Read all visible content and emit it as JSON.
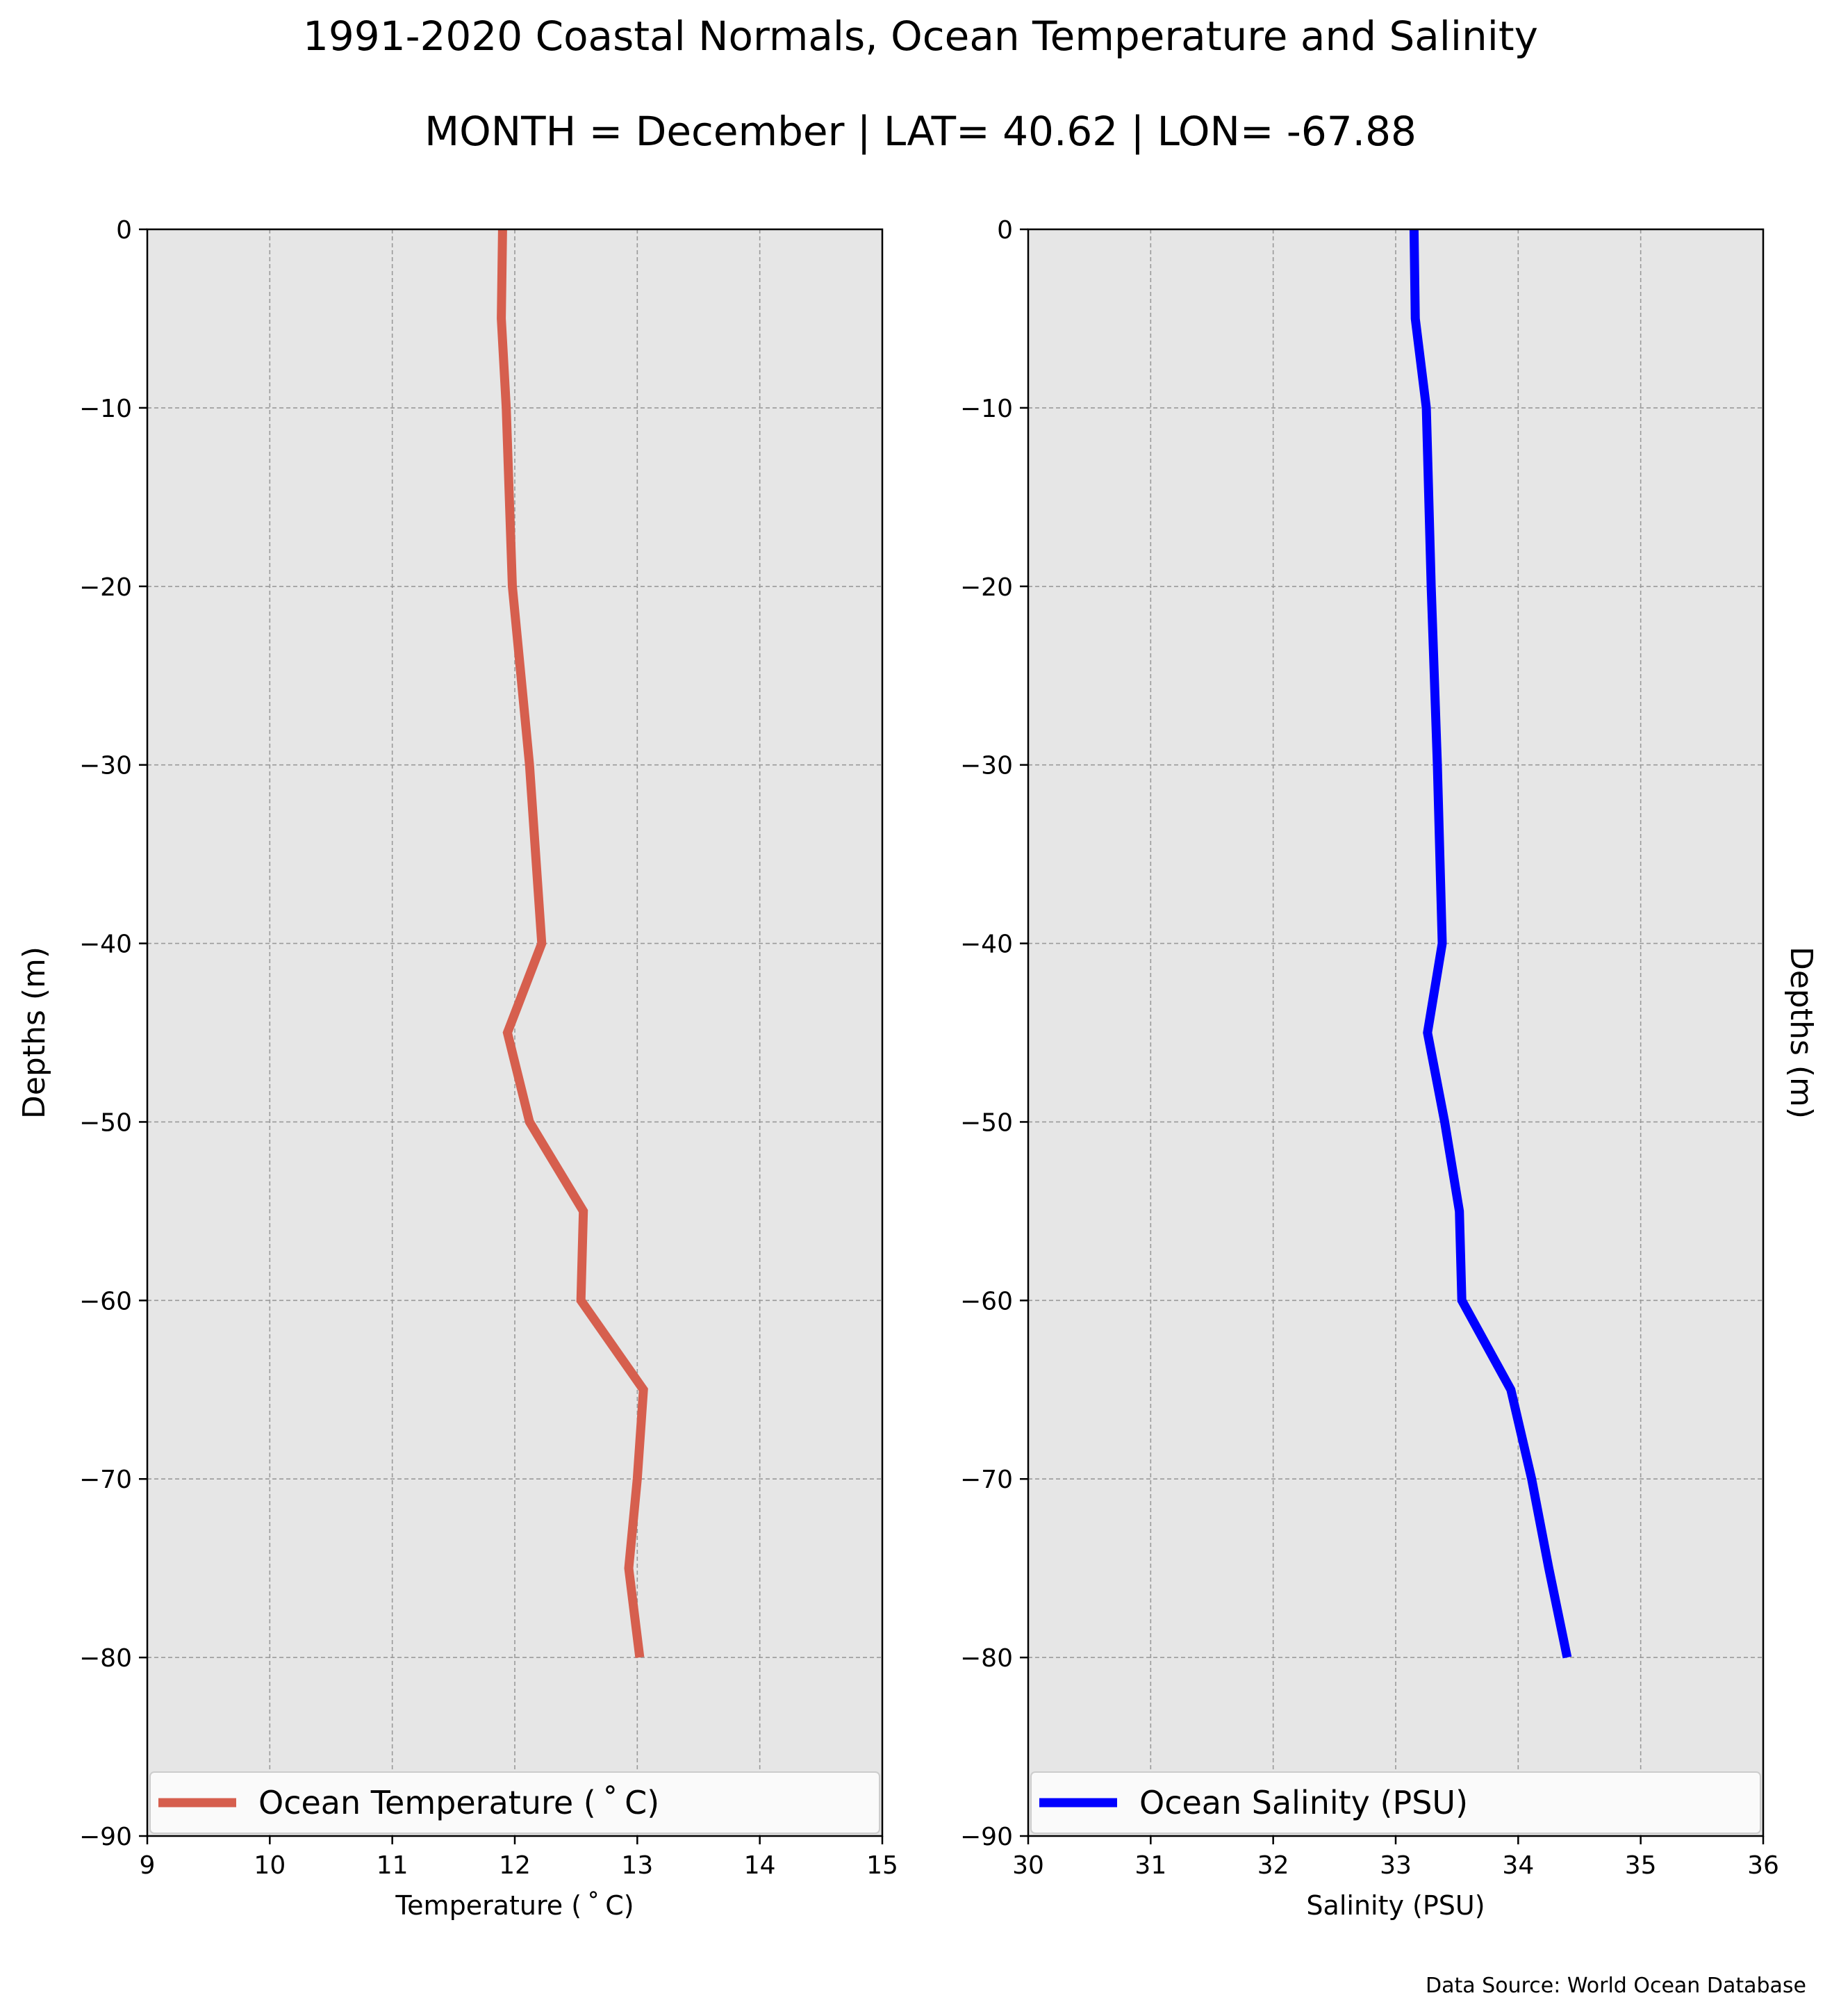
{
  "title": "1991-2020 Coastal Normals, Ocean Temperature and Salinity",
  "subtitle": "MONTH = December | LAT= 40.62 | LON= -67.88",
  "source_note": "Data Source: World Ocean Database",
  "colors": {
    "panel_bg": "#e6e6e6",
    "temperature": "#d65f4e",
    "salinity": "#0000ff",
    "grid": "#9a9a9a"
  },
  "chart_data": [
    {
      "type": "line",
      "ylabel": "Depths (m)",
      "xlabel": "Temperature ($^\\circ$C)",
      "xlabel_display": "Temperature ( ˚ C)",
      "xlim": [
        9,
        15
      ],
      "ylim": [
        -90,
        0
      ],
      "xticks": [
        9,
        10,
        11,
        12,
        13,
        14,
        15
      ],
      "yticks": [
        0,
        -10,
        -20,
        -30,
        -40,
        -50,
        -60,
        -70,
        -80,
        -90
      ],
      "ytick_labels": [
        "0",
        "−10",
        "−20",
        "−30",
        "−40",
        "−50",
        "−60",
        "−70",
        "−80",
        "−90"
      ],
      "grid": true,
      "legend_position": "bottom",
      "series": [
        {
          "name": "Ocean Temperature ( ˚ C)",
          "color": "#d65f4e",
          "x": [
            11.9,
            11.89,
            11.93,
            11.98,
            12.12,
            12.22,
            11.94,
            12.12,
            12.56,
            12.54,
            13.05,
            13.0,
            12.93,
            13.02
          ],
          "y": [
            0,
            -5,
            -10,
            -20,
            -30,
            -40,
            -45,
            -50,
            -55,
            -60,
            -65,
            -70,
            -75,
            -80
          ]
        }
      ]
    },
    {
      "type": "line",
      "ylabel": "Depths (m)",
      "xlabel": "Salinity (PSU)",
      "xlim": [
        30,
        36
      ],
      "ylim": [
        -90,
        0
      ],
      "xticks": [
        30,
        31,
        32,
        33,
        34,
        35,
        36
      ],
      "yticks": [
        0,
        -10,
        -20,
        -30,
        -40,
        -50,
        -60,
        -70,
        -80,
        -90
      ],
      "ytick_labels": [
        "0",
        "−10",
        "−20",
        "−30",
        "−40",
        "−50",
        "−60",
        "−70",
        "−80",
        "−90"
      ],
      "grid": true,
      "legend_position": "bottom",
      "series": [
        {
          "name": "Ocean Salinity (PSU)",
          "color": "#0000ff",
          "x": [
            33.15,
            33.16,
            33.25,
            33.29,
            33.34,
            33.38,
            33.26,
            33.4,
            33.52,
            33.54,
            33.94,
            34.11,
            34.25,
            34.4
          ],
          "y": [
            0,
            -5,
            -10,
            -20,
            -30,
            -40,
            -45,
            -50,
            -55,
            -60,
            -65,
            -70,
            -75,
            -80
          ]
        }
      ]
    }
  ]
}
